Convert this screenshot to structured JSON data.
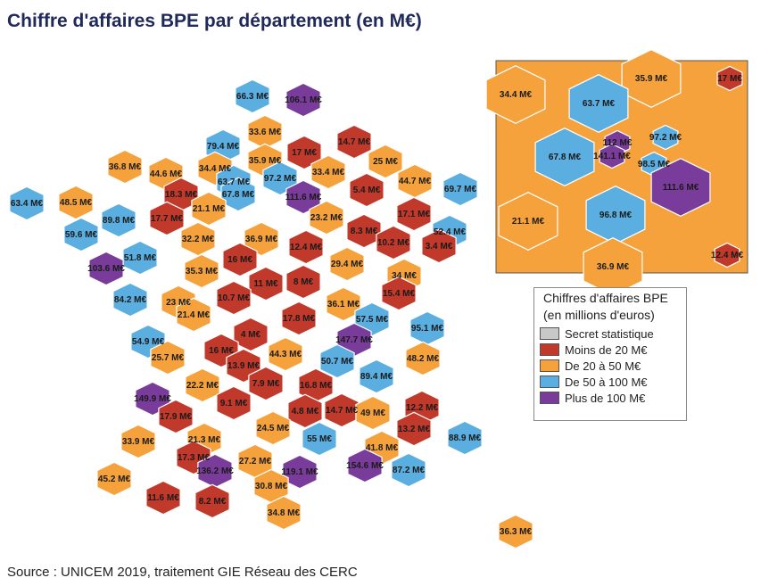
{
  "title": "Chiffre d'affaires BPE par département (en M€)",
  "source": "Source : UNICEM 2019, traitement GIE Réseau des CERC",
  "colors": {
    "secret": "#c8c8c8",
    "lt20": "#c0392b",
    "c20_50": "#f5a23c",
    "c50_100": "#5aaee0",
    "gt100": "#7a3c9a"
  },
  "legend": {
    "title_line1": "Chiffres d'affaires BPE",
    "title_line2": "(en millions d'euros)",
    "items": [
      {
        "key": "secret",
        "label": "Secret statistique"
      },
      {
        "key": "lt20",
        "label": "Moins de 20 M€"
      },
      {
        "key": "c20_50",
        "label": "De 20 à 50 M€"
      },
      {
        "key": "c50_100",
        "label": "De 50 à 100 M€"
      },
      {
        "key": "gt100",
        "label": "Plus de 100 M€"
      }
    ]
  },
  "map_values": [
    "66.3 M€",
    "106.1 M€",
    "79.4 M€",
    "33.6 M€",
    "17 M€",
    "14.7 M€",
    "36.8 M€",
    "44.6 M€",
    "34.4 M€",
    "35.9 M€",
    "33.4 M€",
    "25 M€",
    "44.7 M€",
    "63.7 M€",
    "97.2 M€",
    "111.6 M€",
    "5.4 M€",
    "69.7 M€",
    "63.4 M€",
    "48.5 M€",
    "18.3 M€",
    "67.8 M€",
    "21.1 M€",
    "17.7 M€",
    "89.8 M€",
    "23.2 M€",
    "17.1 M€",
    "59.6 M€",
    "32.2 M€",
    "36.9 M€",
    "12.4 M€",
    "8.3 M€",
    "10.2 M€",
    "52.4 M€",
    "51.8 M€",
    "16 M€",
    "29.4 M€",
    "3.4 M€",
    "103.6 M€",
    "35.3 M€",
    "11 M€",
    "8 M€",
    "34 M€",
    "84.2 M€",
    "10.7 M€",
    "15.4 M€",
    "23 M€",
    "36.1 M€",
    "21.4 M€",
    "17.8 M€",
    "57.5 M€",
    "95.1 M€",
    "4 M€",
    "147.7 M€",
    "54.9 M€",
    "44.3 M€",
    "16 M€",
    "48.2 M€",
    "25.7 M€",
    "50.7 M€",
    "13.9 M€",
    "89.4 M€",
    "149.9 M€",
    "22.2 M€",
    "7.9 M€",
    "16.8 M€",
    "9.1 M€",
    "12.2 M€",
    "4.8 M€",
    "14.7 M€",
    "49 M€",
    "17.9 M€",
    "13.2 M€",
    "24.5 M€",
    "88.9 M€",
    "33.9 M€",
    "21.3 M€",
    "55 M€",
    "41.8 M€",
    "17.3 M€",
    "27.2 M€",
    "45.2 M€",
    "136.2 M€",
    "119.1 M€",
    "154.6 M€",
    "87.2 M€",
    "30.8 M€",
    "11.6 M€",
    "8.2 M€",
    "34.8 M€",
    "36.3 M€"
  ],
  "inset_values": [
    "35.9 M€",
    "17 M€",
    "34.4 M€",
    "63.7 M€",
    "97.2 M€",
    "112 M€",
    "67.8 M€",
    "141.1 M€",
    "98.5 M€",
    "111.6 M€",
    "21.1 M€",
    "96.8 M€",
    "36.9 M€",
    "12.4 M€"
  ]
}
